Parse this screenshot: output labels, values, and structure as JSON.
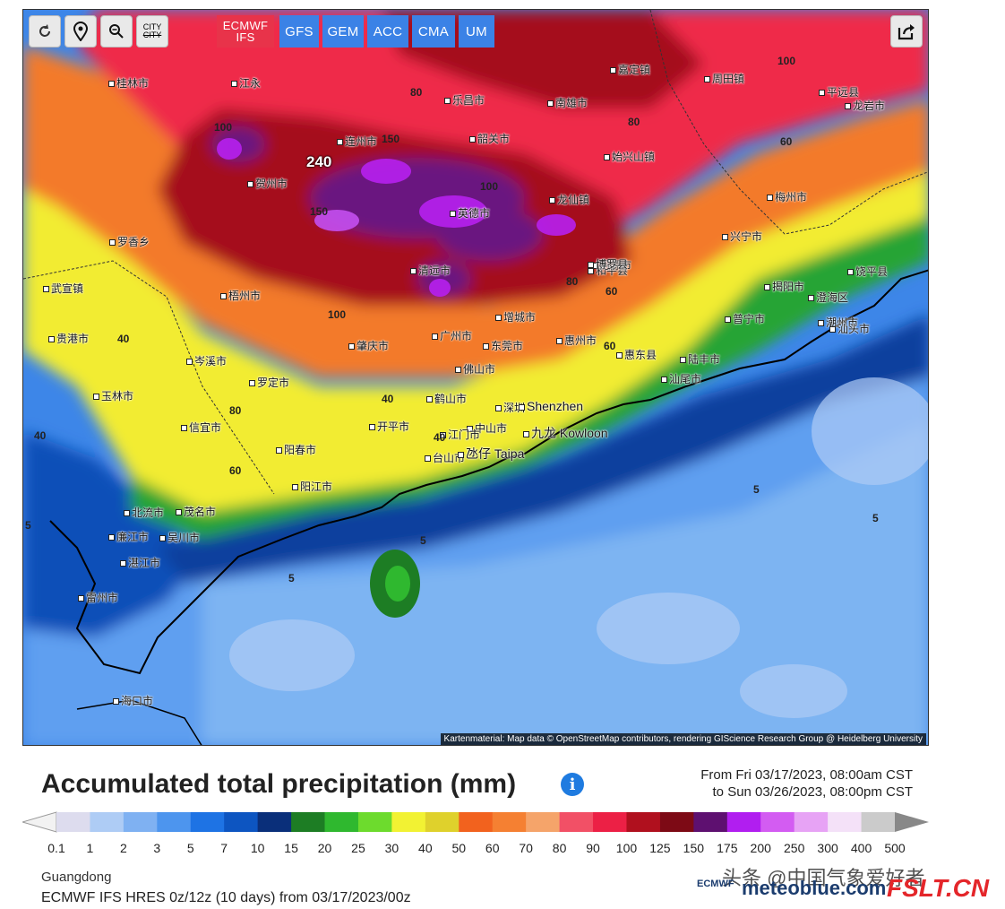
{
  "toolbar": {
    "refresh_icon": "refresh-icon",
    "location_icon": "map-pin-icon",
    "zoom_icon": "zoom-out-icon",
    "city_toggle": "CITY",
    "share_icon": "share-icon"
  },
  "models": [
    {
      "label": "ECMWF IFS",
      "active": true
    },
    {
      "label": "GFS",
      "active": false
    },
    {
      "label": "GEM",
      "active": false
    },
    {
      "label": "ACC",
      "active": false
    },
    {
      "label": "CMA",
      "active": false
    },
    {
      "label": "UM",
      "active": false
    }
  ],
  "map": {
    "max_label": "240",
    "cities": [
      "乐昌市",
      "南雄市",
      "嘉定镇",
      "周田镇",
      "桂林市",
      "江永",
      "连州市",
      "韶关市",
      "始兴山镇",
      "龙岩市",
      "梅州市",
      "兴宁市",
      "和平县",
      "英德市",
      "龙仙镇",
      "贺州市",
      "罗香乡",
      "清远市",
      "河源市",
      "梧州市",
      "增城市",
      "揭阳市",
      "潮州市",
      "普宁市",
      "汕头市",
      "广州市",
      "惠州市",
      "东莞市",
      "肇庆市",
      "佛山市",
      "惠东县",
      "陆丰市",
      "汕尾市",
      "贵港市",
      "岑溪市",
      "罗定市",
      "鹤山市",
      "深圳",
      "Shenzhen",
      "中山市",
      "九龙 Kowloon",
      "江门市",
      "开平市",
      "台山市",
      "氹仔 Taipa",
      "玉林市",
      "信宜市",
      "阳春市",
      "阳江市",
      "北流市",
      "廉江市",
      "吴川市",
      "湛江市",
      "茂名市",
      "雷州市",
      "海口市",
      "武宣镇",
      "澄海区",
      "饶平县",
      "平远县",
      "博罗县"
    ],
    "contours": [
      "150",
      "100",
      "100",
      "80",
      "80",
      "60",
      "60",
      "40",
      "40",
      "40",
      "5",
      "5",
      "5",
      "5",
      "5",
      "100",
      "80",
      "150",
      "100",
      "80",
      "60",
      "40",
      "60"
    ],
    "attribution": "Kartenmaterial: Map data © OpenStreetMap contributors, rendering GIScience Research Group @ Heidelberg University"
  },
  "title": "Accumulated total precipitation (mm)",
  "info_icon": "info-icon",
  "date_from": "From Fri 03/17/2023, 08:00am CST",
  "date_to": "to Sun 03/26/2023, 08:00pm CST",
  "legend": {
    "colors": [
      "#dddcee",
      "#aeccf5",
      "#7fb1f2",
      "#4d95ee",
      "#1e73e4",
      "#0d55c1",
      "#0a2f7a",
      "#1d7d24",
      "#2fb82f",
      "#6ddb2d",
      "#f2f233",
      "#dfd12c",
      "#f2621e",
      "#f58032",
      "#f5a46a",
      "#f25066",
      "#ec2045",
      "#b0101e",
      "#7d0a15",
      "#5e1070",
      "#b11ef0",
      "#d35cf2",
      "#e7a3f5",
      "#f4e1f8",
      "#cbcbcb"
    ],
    "ticks": [
      "0.1",
      "1",
      "2",
      "3",
      "5",
      "7",
      "10",
      "15",
      "20",
      "25",
      "30",
      "40",
      "50",
      "60",
      "70",
      "80",
      "90",
      "100",
      "125",
      "150",
      "175",
      "200",
      "250",
      "300",
      "400",
      "500"
    ]
  },
  "region": "Guangdong",
  "model_line": "ECMWF IFS HRES 0z/12z (10 days) from 03/17/2023/00z",
  "watermark": "头条 @中国气象爱好者",
  "brand_ecmwf": "ECMWF",
  "brand_meteo": "meteoblue.com",
  "brand_site": "FSLT.CN"
}
